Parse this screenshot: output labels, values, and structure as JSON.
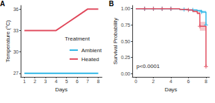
{
  "chart_data": [
    {
      "type": "line",
      "panel_label": "A",
      "x_label": "Days",
      "y_label": "Temperature (°C)",
      "legend_title": "Treatment",
      "xlim": [
        0.65,
        8.35
      ],
      "xticks": [
        1,
        2,
        3,
        4,
        5,
        6,
        7,
        8
      ],
      "ylim": [
        26.5,
        36.5
      ],
      "yticks": [
        27,
        30,
        33,
        36
      ],
      "grid": false,
      "series": [
        {
          "name": "Ambient",
          "color": "#2bb5e6",
          "x": [
            1,
            2,
            3,
            4,
            5,
            6,
            7,
            8
          ],
          "values": [
            27,
            27,
            27,
            27,
            27,
            27,
            27,
            27
          ]
        },
        {
          "name": "Heated",
          "color": "#e0485b",
          "x": [
            1,
            2,
            3,
            4,
            5,
            6,
            7,
            8
          ],
          "values": [
            33,
            33,
            33,
            33,
            34,
            35,
            36,
            36
          ]
        }
      ]
    },
    {
      "type": "survival",
      "panel_label": "B",
      "x_label": "Days",
      "y_label": "Survival Probability",
      "annotation": "p<0.0001",
      "xlim": [
        -0.4,
        8.4
      ],
      "xticks": [
        0,
        2,
        4,
        6,
        8
      ],
      "ylim": [
        -0.05,
        1.05
      ],
      "yticks": [
        {
          "value": 0,
          "label": "0.00"
        },
        {
          "value": 0.25,
          "label": "0.25"
        },
        {
          "value": 0.5,
          "label": "0.50"
        },
        {
          "value": 0.75,
          "label": "0.75"
        },
        {
          "value": 1,
          "label": "1.00"
        }
      ],
      "grid": false,
      "series": [
        {
          "name": "Ambient",
          "color": "#2bb5e6",
          "marker": "plus",
          "x": [
            0,
            5,
            6,
            7,
            7.5,
            8
          ],
          "values": [
            1,
            0.99,
            0.98,
            0.97,
            0.95,
            0.75
          ],
          "lower": [
            1,
            0.98,
            0.97,
            0.955,
            0.93,
            0.72
          ],
          "upper": [
            1,
            1,
            0.99,
            0.985,
            0.97,
            0.78
          ],
          "censored": [
            [
              1,
              1
            ],
            [
              2,
              1
            ],
            [
              3,
              1
            ],
            [
              4,
              1
            ],
            [
              5.5,
              0.99
            ],
            [
              6.5,
              0.98
            ],
            [
              7.5,
              0.95
            ],
            [
              8,
              0.75
            ]
          ]
        },
        {
          "name": "Heated",
          "color": "#e0485b",
          "marker": "plus",
          "x": [
            0,
            5,
            6,
            6.5,
            7,
            7.3,
            8
          ],
          "values": [
            1,
            0.99,
            0.98,
            0.96,
            0.93,
            0.73,
            0.11
          ],
          "lower": [
            1,
            0.98,
            0.97,
            0.945,
            0.91,
            0.66,
            0.08
          ],
          "upper": [
            1,
            1,
            0.99,
            0.975,
            0.95,
            0.8,
            0.15
          ],
          "censored": [
            [
              1,
              1
            ],
            [
              2,
              1
            ],
            [
              3,
              1
            ],
            [
              4,
              1
            ],
            [
              6,
              0.98
            ],
            [
              7.3,
              0.73
            ],
            [
              8,
              0.11
            ]
          ]
        }
      ]
    }
  ]
}
